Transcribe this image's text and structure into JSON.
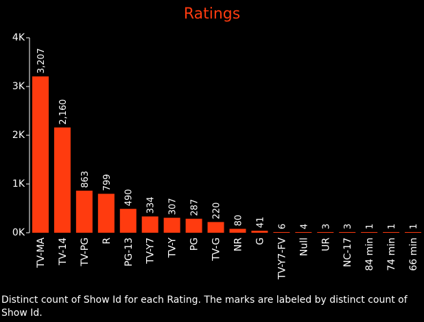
{
  "chart_data": {
    "type": "bar",
    "title": "Ratings",
    "xlabel": "",
    "ylabel": "",
    "ylim": [
      0,
      4000
    ],
    "y_ticks": [
      0,
      1000,
      2000,
      3000,
      4000
    ],
    "y_tick_labels": [
      "0K",
      "1K",
      "2K",
      "3K",
      "4K"
    ],
    "categories": [
      "TV-MA",
      "TV-14",
      "TV-PG",
      "R",
      "PG-13",
      "TV-Y7",
      "TV-Y",
      "PG",
      "TV-G",
      "NR",
      "G",
      "TV-Y7-FV",
      "Null",
      "UR",
      "NC-17",
      "84 min",
      "74 min",
      "66 min"
    ],
    "values": [
      3207,
      2160,
      863,
      799,
      490,
      334,
      307,
      287,
      220,
      80,
      41,
      6,
      4,
      3,
      3,
      1,
      1,
      1
    ],
    "value_labels": [
      "3,207",
      "2,160",
      "863",
      "799",
      "490",
      "334",
      "307",
      "287",
      "220",
      "80",
      "41",
      "6",
      "4",
      "3",
      "3",
      "1",
      "1",
      "1"
    ],
    "bar_color": "#ff3b0f",
    "grid": false,
    "legend": "none"
  },
  "caption": "Distinct count of Show Id for each Rating.  The marks are labeled by distinct count of Show Id."
}
